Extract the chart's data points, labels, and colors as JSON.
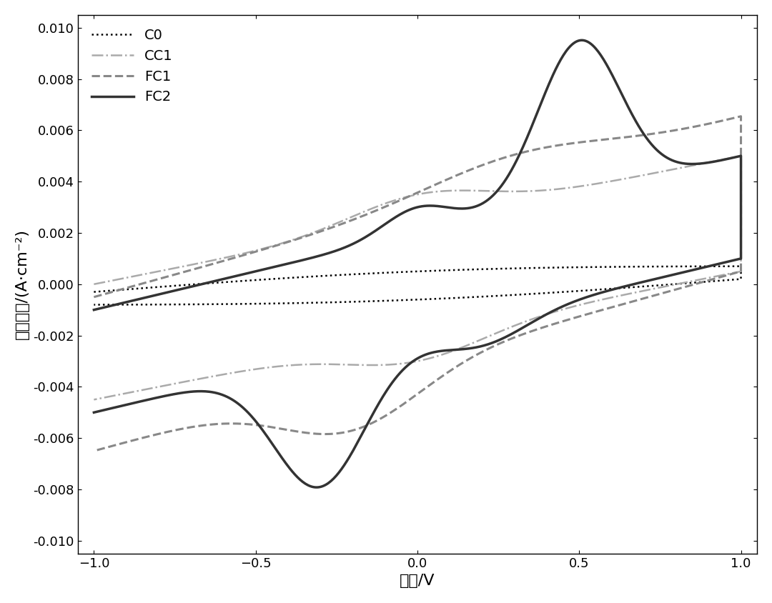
{
  "title": "",
  "xlabel": "电压/V",
  "ylabel": "电流密度/(A·cm⁻²)",
  "xlim": [
    -1.05,
    1.05
  ],
  "ylim": [
    -0.0105,
    0.0105
  ],
  "xticks": [
    -1.0,
    -0.5,
    0.0,
    0.5,
    1.0
  ],
  "yticks": [
    -0.01,
    -0.008,
    -0.006,
    -0.004,
    -0.002,
    0.0,
    0.002,
    0.004,
    0.006,
    0.008,
    0.01
  ],
  "legend_labels": [
    "C0",
    "CC1",
    "FC1",
    "FC2"
  ],
  "colors": {
    "C0": "#000000",
    "CC1": "#aaaaaa",
    "FC1": "#888888",
    "FC2": "#333333"
  },
  "linestyles": {
    "C0": "dotted",
    "CC1": "dashdot",
    "FC1": "dashed",
    "FC2": "solid"
  },
  "linewidths": {
    "C0": 1.8,
    "CC1": 1.8,
    "FC1": 2.2,
    "FC2": 2.5
  },
  "background_color": "#ffffff",
  "figure_size": [
    10.8,
    8.44
  ],
  "dpi": 100
}
